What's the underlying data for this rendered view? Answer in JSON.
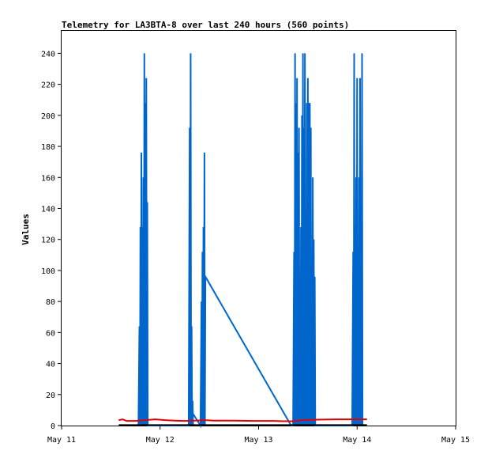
{
  "chart_data": {
    "type": "line",
    "title": "Telemetry for LA3BTA-8 over last 240 hours (560 points)",
    "xlabel": "",
    "ylabel": "Values",
    "xlim": [
      "May 11",
      "May 15"
    ],
    "ylim": [
      0,
      255
    ],
    "x_ticks": [
      "May 11",
      "May 12",
      "May 13",
      "May 14",
      "May 15"
    ],
    "y_ticks": [
      0,
      20,
      40,
      60,
      80,
      100,
      120,
      140,
      160,
      180,
      200,
      220,
      240
    ],
    "grid": false,
    "legend": "none",
    "series": [
      {
        "color": "#0066cc",
        "x_unit": "days since May 11",
        "points": [
          [
            0.78,
            0
          ],
          [
            0.79,
            64
          ],
          [
            0.795,
            0
          ],
          [
            0.8,
            128
          ],
          [
            0.805,
            0
          ],
          [
            0.81,
            176
          ],
          [
            0.815,
            0
          ],
          [
            0.82,
            128
          ],
          [
            0.825,
            0
          ],
          [
            0.83,
            160
          ],
          [
            0.835,
            0
          ],
          [
            0.84,
            240
          ],
          [
            0.845,
            0
          ],
          [
            0.85,
            208
          ],
          [
            0.855,
            0
          ],
          [
            0.86,
            224
          ],
          [
            0.865,
            0
          ],
          [
            0.87,
            144
          ],
          [
            0.875,
            0
          ],
          [
            1.29,
            0
          ],
          [
            1.3,
            192
          ],
          [
            1.305,
            0
          ],
          [
            1.31,
            240
          ],
          [
            1.315,
            0
          ],
          [
            1.32,
            64
          ],
          [
            1.325,
            0
          ],
          [
            1.33,
            16
          ],
          [
            1.335,
            0
          ],
          [
            1.33,
            8
          ],
          [
            1.41,
            0
          ],
          [
            1.42,
            80
          ],
          [
            1.425,
            0
          ],
          [
            1.43,
            112
          ],
          [
            1.435,
            0
          ],
          [
            1.44,
            128
          ],
          [
            1.445,
            0
          ],
          [
            1.45,
            176
          ],
          [
            1.455,
            0
          ],
          [
            1.46,
            96
          ],
          [
            2.33,
            0
          ],
          [
            2.35,
            0
          ],
          [
            2.36,
            112
          ],
          [
            2.365,
            0
          ],
          [
            2.37,
            240
          ],
          [
            2.375,
            0
          ],
          [
            2.38,
            208
          ],
          [
            2.385,
            0
          ],
          [
            2.39,
            224
          ],
          [
            2.395,
            0
          ],
          [
            2.4,
            176
          ],
          [
            2.405,
            0
          ],
          [
            2.41,
            192
          ],
          [
            2.415,
            0
          ],
          [
            2.42,
            80
          ],
          [
            2.425,
            0
          ],
          [
            2.43,
            128
          ],
          [
            2.435,
            0
          ],
          [
            2.44,
            200
          ],
          [
            2.445,
            0
          ],
          [
            2.45,
            240
          ],
          [
            2.455,
            0
          ],
          [
            2.46,
            192
          ],
          [
            2.465,
            0
          ],
          [
            2.47,
            240
          ],
          [
            2.475,
            0
          ],
          [
            2.48,
            96
          ],
          [
            2.485,
            0
          ],
          [
            2.49,
            208
          ],
          [
            2.495,
            0
          ],
          [
            2.5,
            224
          ],
          [
            2.505,
            0
          ],
          [
            2.51,
            208
          ],
          [
            2.515,
            0
          ],
          [
            2.52,
            208
          ],
          [
            2.525,
            0
          ],
          [
            2.53,
            192
          ],
          [
            2.535,
            0
          ],
          [
            2.54,
            80
          ],
          [
            2.545,
            0
          ],
          [
            2.55,
            160
          ],
          [
            2.555,
            0
          ],
          [
            2.56,
            120
          ],
          [
            2.565,
            0
          ],
          [
            2.57,
            96
          ],
          [
            2.575,
            0
          ],
          [
            2.95,
            0
          ],
          [
            2.96,
            112
          ],
          [
            2.965,
            0
          ],
          [
            2.97,
            240
          ],
          [
            2.975,
            0
          ],
          [
            2.98,
            128
          ],
          [
            2.985,
            0
          ],
          [
            2.99,
            160
          ],
          [
            2.995,
            0
          ],
          [
            3.0,
            224
          ],
          [
            3.005,
            0
          ],
          [
            3.01,
            80
          ],
          [
            3.015,
            0
          ],
          [
            3.02,
            160
          ],
          [
            3.025,
            0
          ],
          [
            3.03,
            224
          ],
          [
            3.035,
            0
          ],
          [
            3.04,
            128
          ],
          [
            3.045,
            0
          ],
          [
            3.05,
            240
          ],
          [
            3.055,
            0
          ]
        ]
      },
      {
        "color": "#e00000",
        "x_unit": "days since May 11",
        "points": [
          [
            0.58,
            3.5
          ],
          [
            0.62,
            4
          ],
          [
            0.66,
            3
          ],
          [
            0.75,
            3
          ],
          [
            0.85,
            3.5
          ],
          [
            0.95,
            4
          ],
          [
            1.05,
            3.5
          ],
          [
            1.15,
            3.2
          ],
          [
            1.25,
            3
          ],
          [
            1.35,
            3.2
          ],
          [
            1.45,
            3.5
          ],
          [
            1.55,
            3.2
          ],
          [
            1.75,
            3.2
          ],
          [
            1.95,
            3
          ],
          [
            2.15,
            3
          ],
          [
            2.25,
            2.8
          ],
          [
            2.35,
            2.8
          ],
          [
            2.45,
            3.5
          ],
          [
            2.6,
            3.8
          ],
          [
            2.8,
            4
          ],
          [
            3.0,
            4
          ],
          [
            3.1,
            4
          ]
        ]
      },
      {
        "color": "#000000",
        "x_unit": "days since May 11",
        "points": [
          [
            0.58,
            0.3
          ],
          [
            1.0,
            0.3
          ],
          [
            1.5,
            0.3
          ],
          [
            2.0,
            0.3
          ],
          [
            2.5,
            0.3
          ],
          [
            3.1,
            0.3
          ]
        ]
      }
    ]
  }
}
